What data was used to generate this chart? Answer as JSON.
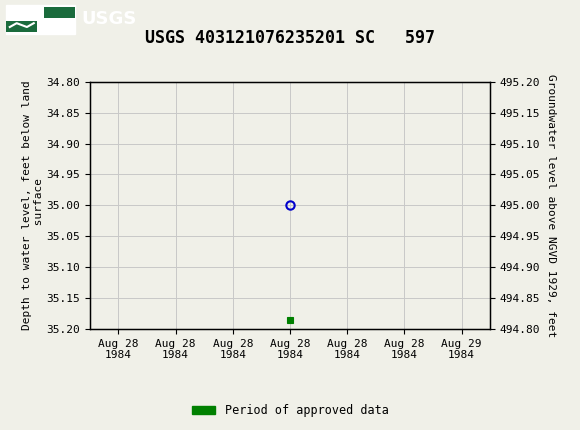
{
  "title": "USGS 403121076235201 SC   597",
  "left_ylabel": "Depth to water level, feet below land\n surface",
  "right_ylabel": "Groundwater level above NGVD 1929, feet",
  "ylim_left": [
    34.8,
    35.2
  ],
  "ylim_right": [
    494.8,
    495.2
  ],
  "yticks_left": [
    34.8,
    34.85,
    34.9,
    34.95,
    35.0,
    35.05,
    35.1,
    35.15,
    35.2
  ],
  "yticks_right": [
    495.2,
    495.15,
    495.1,
    495.05,
    495.0,
    494.95,
    494.9,
    494.85,
    494.8
  ],
  "data_point_depth": 35.0,
  "data_marker_depth": 35.185,
  "circle_color": "#0000cc",
  "square_color": "#008000",
  "background_color": "#f0f0e8",
  "plot_bg_color": "#f0f0e8",
  "grid_color": "#c8c8c8",
  "header_bg_color": "#1a6b3c",
  "title_fontsize": 12,
  "axis_fontsize": 8,
  "tick_fontsize": 8,
  "legend_label": "Period of approved data",
  "xtick_labels": [
    "Aug 28\n1984",
    "Aug 28\n1984",
    "Aug 28\n1984",
    "Aug 28\n1984",
    "Aug 28\n1984",
    "Aug 28\n1984",
    "Aug 29\n1984"
  ]
}
